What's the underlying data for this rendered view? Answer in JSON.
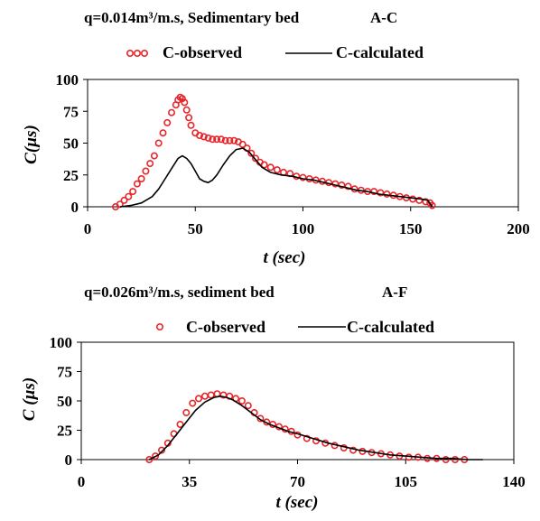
{
  "chart_data": [
    {
      "type": "scatter",
      "title_left": "q=0.014m³/m.s, Sedimentary bed",
      "title_right": "A-C",
      "xlabel": "t (sec)",
      "ylabel": "C(µs)",
      "xlim": [
        0,
        200
      ],
      "ylim": [
        0,
        100
      ],
      "xticks": [
        0,
        50,
        100,
        150,
        200
      ],
      "yticks": [
        0,
        25,
        50,
        75,
        100
      ],
      "grid": false,
      "legend_position": "top",
      "series": [
        {
          "name": "C-observed",
          "style": "markers",
          "color": "#e8262a",
          "x": [
            13,
            15,
            17,
            19,
            21,
            23,
            25,
            27,
            29,
            31,
            33,
            35,
            37,
            39,
            41,
            42,
            43,
            44,
            45,
            46,
            47,
            48,
            50,
            52,
            54,
            56,
            58,
            60,
            62,
            64,
            66,
            68,
            70,
            72,
            74,
            76,
            78,
            80,
            82,
            85,
            88,
            91,
            94,
            97,
            100,
            103,
            106,
            109,
            112,
            115,
            118,
            121,
            124,
            127,
            130,
            133,
            136,
            139,
            142,
            145,
            148,
            151,
            154,
            157,
            159,
            160
          ],
          "y": [
            0,
            2,
            5,
            8,
            12,
            18,
            22,
            28,
            34,
            40,
            50,
            58,
            66,
            74,
            80,
            84,
            86,
            85,
            82,
            76,
            70,
            64,
            58,
            56,
            55,
            54,
            53,
            53,
            53,
            52,
            52,
            52,
            51,
            49,
            46,
            42,
            38,
            35,
            33,
            31,
            29,
            27,
            26,
            24,
            23,
            22,
            21,
            20,
            19,
            18,
            17,
            16,
            14,
            13,
            12,
            12,
            11,
            10,
            9,
            8,
            7,
            6,
            5,
            4,
            3,
            1
          ]
        },
        {
          "name": "C-calculated",
          "style": "line",
          "color": "#000000",
          "x": [
            15,
            20,
            25,
            30,
            33,
            36,
            39,
            42,
            44,
            46,
            48,
            50,
            52,
            54,
            56,
            58,
            60,
            63,
            66,
            69,
            72,
            75,
            78,
            81,
            85,
            90,
            95,
            100,
            105,
            110,
            115,
            120,
            125,
            130,
            135,
            140,
            145,
            150,
            155,
            158,
            160
          ],
          "y": [
            0,
            1,
            3,
            8,
            14,
            22,
            30,
            38,
            40,
            38,
            34,
            28,
            22,
            20,
            19,
            21,
            25,
            33,
            40,
            45,
            46,
            43,
            37,
            31,
            27,
            25,
            24,
            22,
            21,
            19,
            17,
            15,
            13,
            12,
            10,
            9,
            8,
            7,
            6,
            5,
            0
          ]
        }
      ]
    },
    {
      "type": "scatter",
      "title_left": "q=0.026m³/m.s, sediment bed",
      "title_right": "A-F",
      "xlabel": "t (sec)",
      "ylabel": "C (µs)",
      "xlim": [
        0,
        140
      ],
      "ylim": [
        0,
        100
      ],
      "xticks": [
        0,
        35,
        70,
        105,
        140
      ],
      "yticks": [
        0,
        25,
        50,
        75,
        100
      ],
      "grid": false,
      "legend_position": "top",
      "series": [
        {
          "name": "C-observed",
          "style": "markers",
          "color": "#e8262a",
          "x": [
            22,
            24,
            26,
            28,
            30,
            32,
            34,
            36,
            38,
            40,
            42,
            44,
            46,
            48,
            50,
            52,
            54,
            56,
            58,
            60,
            62,
            64,
            66,
            68,
            70,
            73,
            76,
            79,
            82,
            85,
            88,
            91,
            94,
            97,
            100,
            103,
            106,
            109,
            112,
            115,
            118,
            121,
            124
          ],
          "y": [
            0,
            3,
            8,
            14,
            22,
            30,
            40,
            48,
            52,
            54,
            55,
            56,
            55,
            54,
            52,
            50,
            46,
            40,
            35,
            32,
            30,
            28,
            26,
            24,
            21,
            18,
            16,
            14,
            12,
            10,
            8,
            7,
            6,
            5,
            4,
            3,
            2,
            2,
            1,
            1,
            0,
            0,
            0
          ]
        },
        {
          "name": "C-calculated",
          "style": "line",
          "color": "#000000",
          "x": [
            22,
            25,
            28,
            31,
            34,
            37,
            40,
            43,
            45,
            47,
            49,
            52,
            55,
            58,
            61,
            64,
            67,
            70,
            75,
            80,
            85,
            90,
            95,
            100,
            105,
            110,
            115,
            120,
            125,
            130
          ],
          "y": [
            0,
            4,
            12,
            22,
            32,
            42,
            49,
            53,
            54,
            53,
            51,
            46,
            40,
            34,
            30,
            27,
            24,
            22,
            18,
            14,
            11,
            8,
            6,
            4,
            3,
            2,
            1,
            1,
            0,
            0
          ]
        }
      ]
    }
  ]
}
